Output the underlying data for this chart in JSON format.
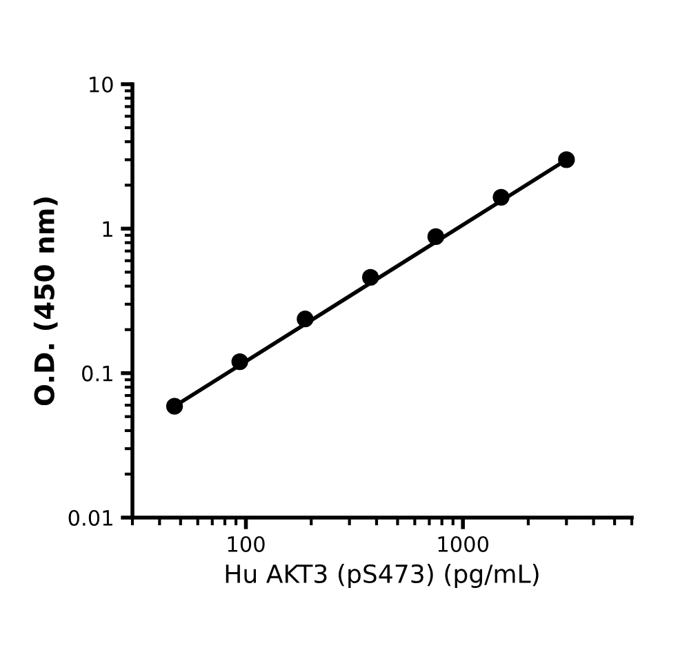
{
  "chart_data": {
    "type": "scatter",
    "xlabel": "Hu AKT3 (pS473) (pg/mL)",
    "ylabel": "O.D. (450 nm)",
    "log": "xy",
    "xlim": [
      30,
      6000
    ],
    "xticks": [
      100,
      1000
    ],
    "ylim": [
      0.01,
      10
    ],
    "yticks": [
      0.01,
      0.1,
      1,
      10
    ],
    "grid": false,
    "legend": false,
    "series": [
      {
        "color": "#000000",
        "marker": "circle",
        "x": [
          46.9,
          93.75,
          187.5,
          375,
          750,
          1500,
          3000
        ],
        "values": [
          0.059,
          0.12,
          0.237,
          0.46,
          0.88,
          1.65,
          3.0
        ]
      },
      {
        "type": "line",
        "marker": "none",
        "color": "#000000",
        "x": [
          46.9,
          3000
        ],
        "values": [
          0.059,
          3.0
        ]
      }
    ]
  }
}
